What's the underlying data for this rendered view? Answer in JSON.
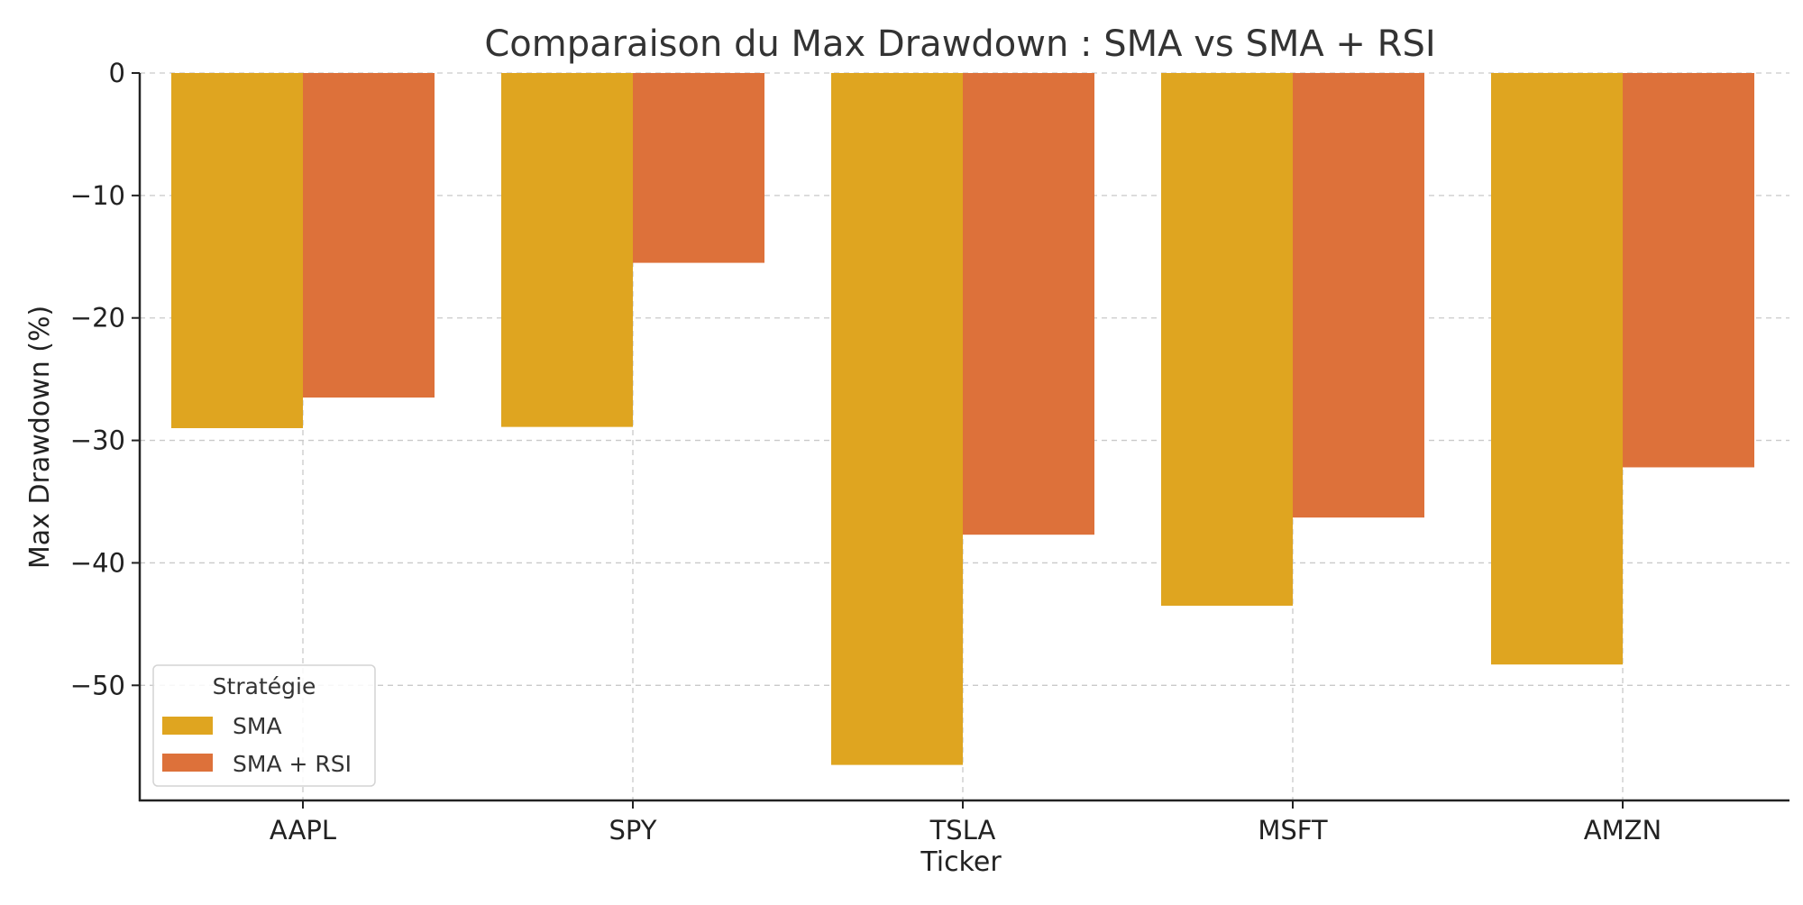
{
  "chart_data": {
    "type": "bar",
    "title": "Comparaison du Max Drawdown : SMA vs SMA + RSI",
    "xlabel": "Ticker",
    "ylabel": "Max Drawdown (%)",
    "categories": [
      "AAPL",
      "SPY",
      "TSLA",
      "MSFT",
      "AMZN"
    ],
    "series": [
      {
        "name": "SMA",
        "color": "#DFA520",
        "values": [
          -29.0,
          -28.9,
          -56.5,
          -43.5,
          -48.3
        ]
      },
      {
        "name": "SMA + RSI",
        "color": "#DD713A",
        "values": [
          -26.5,
          -15.5,
          -37.7,
          -36.3,
          -32.2
        ]
      }
    ],
    "ylim": [
      -59.4,
      0
    ],
    "yticks": [
      0,
      -10,
      -20,
      -30,
      -40,
      -50
    ],
    "ytick_labels": [
      "0",
      "−10",
      "−20",
      "−30",
      "−40",
      "−50"
    ],
    "legend": {
      "title": "Stratégie",
      "placement": "bottom-left"
    },
    "grid": true
  }
}
